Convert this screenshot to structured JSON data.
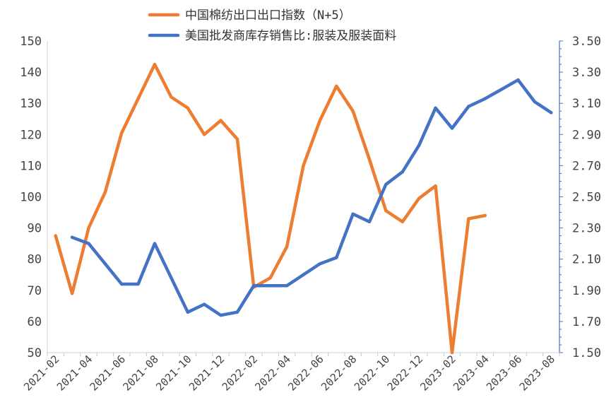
{
  "chart_data": {
    "type": "line",
    "title": "",
    "x": [
      "2021-02",
      "2021-03",
      "2021-04",
      "2021-05",
      "2021-06",
      "2021-07",
      "2021-08",
      "2021-09",
      "2021-10",
      "2021-11",
      "2021-12",
      "2022-01",
      "2022-02",
      "2022-03",
      "2022-04",
      "2022-05",
      "2022-06",
      "2022-07",
      "2022-08",
      "2022-09",
      "2022-10",
      "2022-11",
      "2022-12",
      "2023-01",
      "2023-02",
      "2023-03",
      "2023-04",
      "2023-05",
      "2023-06",
      "2023-07",
      "2023-08"
    ],
    "x_tick_labels": [
      "2021-02",
      "2021-04",
      "2021-06",
      "2021-08",
      "2021-10",
      "2021-12",
      "2022-02",
      "2022-04",
      "2022-06",
      "2022-08",
      "2022-10",
      "2022-12",
      "2023-02",
      "2023-04",
      "2023-06",
      "2023-08"
    ],
    "y_left": {
      "ylim": [
        50,
        150
      ],
      "ticks": [
        "50",
        "60",
        "70",
        "80",
        "90",
        "100",
        "110",
        "120",
        "130",
        "140",
        "150"
      ]
    },
    "y_right": {
      "ylim": [
        1.5,
        3.5
      ],
      "ticks": [
        "1.50",
        "1.70",
        "1.90",
        "2.10",
        "2.30",
        "2.50",
        "2.70",
        "2.90",
        "3.10",
        "3.30",
        "3.50"
      ]
    },
    "legend_position": "top",
    "series": [
      {
        "name": "中国棉纺出口出口指数（N+5）",
        "color": "#ED7D31",
        "axis": "left",
        "values": [
          87.5,
          69,
          90,
          101.5,
          120.5,
          131.5,
          142.5,
          132,
          128.5,
          120,
          124.5,
          118.5,
          71,
          74,
          84,
          110,
          124.5,
          135.5,
          127.5,
          112,
          95.5,
          92,
          99.5,
          103.5,
          50,
          93,
          94,
          null,
          null,
          null,
          null
        ]
      },
      {
        "name": "美国批发商库存销售比:服装及服装面料",
        "color": "#4472C4",
        "axis": "right",
        "values": [
          null,
          2.24,
          2.2,
          2.07,
          1.94,
          1.94,
          2.2,
          1.98,
          1.76,
          1.81,
          1.74,
          1.76,
          1.93,
          1.93,
          1.93,
          2.0,
          2.07,
          2.11,
          2.39,
          2.34,
          2.58,
          2.66,
          2.83,
          3.07,
          2.94,
          3.08,
          3.13,
          3.19,
          3.25,
          3.11,
          3.04
        ]
      }
    ]
  }
}
